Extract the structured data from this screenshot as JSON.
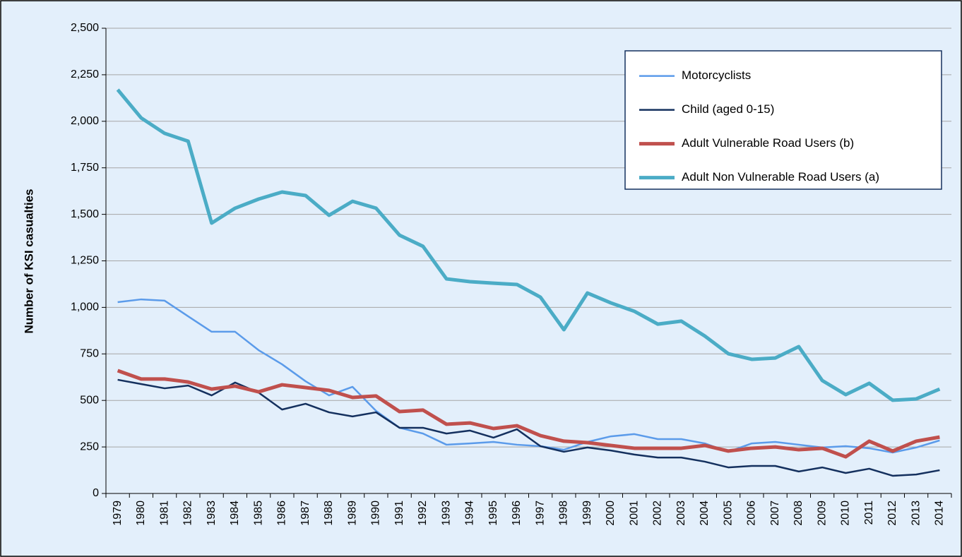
{
  "chart_data": {
    "type": "line",
    "y_label": "Number of KSI casualties",
    "categories": [
      "1979",
      "1980",
      "1981",
      "1982",
      "1983",
      "1984",
      "1985",
      "1986",
      "1987",
      "1988",
      "1989",
      "1990",
      "1991",
      "1992",
      "1993",
      "1994",
      "1995",
      "1996",
      "1997",
      "1998",
      "1999",
      "2000",
      "2001",
      "2002",
      "2003",
      "2004",
      "2005",
      "2006",
      "2007",
      "2008",
      "2009",
      "2010",
      "2011",
      "2012",
      "2013",
      "2014"
    ],
    "series": [
      {
        "name": "Motorcyclists",
        "color": "#5b9bea",
        "values": [
          1028,
          1043,
          1036,
          952,
          869,
          869,
          770,
          694,
          603,
          527,
          573,
          444,
          353,
          322,
          262,
          269,
          277,
          262,
          254,
          235,
          277,
          307,
          319,
          292,
          292,
          269,
          224,
          269,
          277,
          262,
          247,
          254,
          243,
          220,
          247,
          285
        ]
      },
      {
        "name": "Child (aged 0-15)",
        "color": "#14305e",
        "values": [
          611,
          588,
          565,
          580,
          527,
          596,
          542,
          451,
          482,
          436,
          414,
          436,
          353,
          353,
          322,
          338,
          300,
          345,
          254,
          224,
          247,
          231,
          209,
          193,
          193,
          171,
          140,
          148,
          148,
          118,
          140,
          110,
          133,
          95,
          102,
          125
        ]
      },
      {
        "name": "Adult Vulnerable Road Users (b)",
        "color": "#c0504d",
        "values": [
          660,
          615,
          615,
          599,
          561,
          577,
          546,
          584,
          569,
          554,
          516,
          524,
          440,
          448,
          372,
          379,
          349,
          364,
          311,
          281,
          273,
          258,
          243,
          243,
          243,
          258,
          228,
          243,
          250,
          235,
          243,
          197,
          281,
          228,
          281,
          303
        ]
      },
      {
        "name": "Adult Non Vulnerable Road Users (a)",
        "color": "#4bacc6",
        "values": [
          2170,
          2018,
          1935,
          1893,
          1453,
          1533,
          1582,
          1620,
          1601,
          1495,
          1570,
          1533,
          1388,
          1328,
          1153,
          1138,
          1130,
          1123,
          1055,
          880,
          1077,
          1024,
          979,
          910,
          926,
          846,
          751,
          721,
          728,
          789,
          607,
          531,
          592,
          501,
          508,
          561
        ]
      }
    ],
    "ylim": [
      0,
      2500
    ],
    "yticks": [
      0,
      250,
      500,
      750,
      {
        "value": 1000,
        "label": "1,000"
      },
      {
        "value": 1250,
        "label": "1,250"
      },
      {
        "value": 1500,
        "label": "1,500"
      },
      {
        "value": 1750,
        "label": "1,750"
      },
      {
        "value": 2000,
        "label": "2,000"
      },
      {
        "value": 2250,
        "label": "2,250"
      },
      {
        "value": 2500,
        "label": "2,500"
      }
    ],
    "grid": true,
    "legend": "upper right"
  }
}
